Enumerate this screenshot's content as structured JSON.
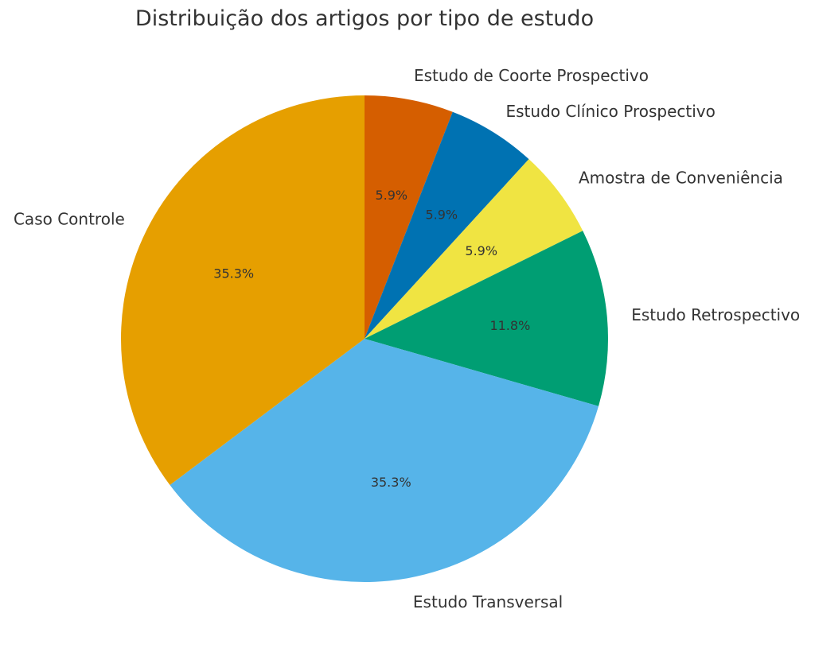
{
  "chart_data": {
    "type": "pie",
    "title": "Distribuição dos artigos por tipo de estudo",
    "slices": [
      {
        "label": "Estudo de Coorte Prospectivo",
        "value": 5.9,
        "pct_label": "5.9%",
        "color": "#D55E00"
      },
      {
        "label": "Estudo Clínico Prospectivo",
        "value": 5.9,
        "pct_label": "5.9%",
        "color": "#0072B2"
      },
      {
        "label": "Amostra de Conveniência",
        "value": 5.9,
        "pct_label": "5.9%",
        "color": "#F0E442"
      },
      {
        "label": "Estudo Retrospectivo",
        "value": 11.8,
        "pct_label": "11.8%",
        "color": "#009E73"
      },
      {
        "label": "Estudo Transversal",
        "value": 35.3,
        "pct_label": "35.3%",
        "color": "#56B4E9"
      },
      {
        "label": "Caso Controle",
        "value": 35.3,
        "pct_label": "35.3%",
        "color": "#E69F00"
      }
    ],
    "start_angle": "top",
    "direction": "clockwise"
  }
}
